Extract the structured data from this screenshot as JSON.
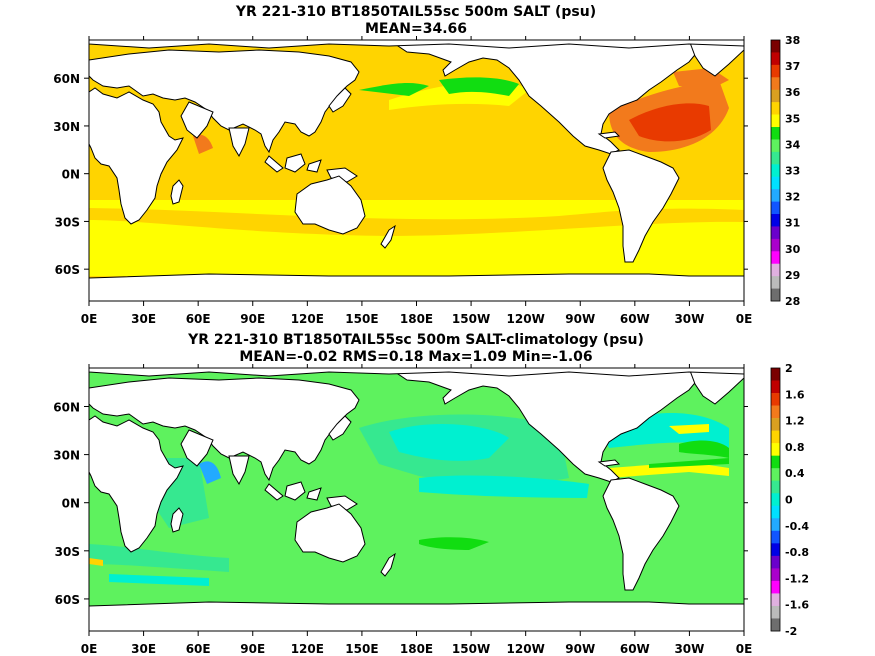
{
  "panels": [
    {
      "title1": "YR 221-310 BT1850TAIL55sc 500m SALT (psu)",
      "title2": "MEAN=34.66",
      "colorbar": {
        "labels": [
          "38",
          "37",
          "36",
          "35",
          "34",
          "33",
          "32",
          "31",
          "30",
          "29",
          "28"
        ],
        "colors": [
          "#7a0000",
          "#c00000",
          "#e83a00",
          "#f27a1c",
          "#d9a020",
          "#ffd400",
          "#ffff00",
          "#11dd11",
          "#5ef25e",
          "#36e890",
          "#00f0d0",
          "#00e0ff",
          "#22aaff",
          "#1155ff",
          "#0000e6",
          "#6a00cc",
          "#aa00cc",
          "#ff00ff",
          "#e0b0e0",
          "#bbbbbb",
          "#6e6e6e"
        ]
      }
    },
    {
      "title1": "YR 221-310 BT1850TAIL55sc 500m SALT-climatology (psu)",
      "title2": "MEAN=-0.02   RMS=0.18   Max=1.09   Min=-1.06",
      "colorbar": {
        "labels": [
          "2",
          "1.6",
          "1.2",
          "0.8",
          "0.4",
          "0",
          "-0.4",
          "-0.8",
          "-1.2",
          "-1.6",
          "-2"
        ],
        "colors": [
          "#7a0000",
          "#c00000",
          "#e83a00",
          "#f27a1c",
          "#d9a020",
          "#ffd400",
          "#ffff00",
          "#11dd11",
          "#5ef25e",
          "#36e890",
          "#00f0d0",
          "#00e0ff",
          "#22aaff",
          "#1155ff",
          "#0000e6",
          "#6a00cc",
          "#aa00cc",
          "#ff00ff",
          "#e0b0e0",
          "#bbbbbb",
          "#6e6e6e"
        ]
      }
    }
  ],
  "lon_labels": [
    "0E",
    "30E",
    "60E",
    "90E",
    "120E",
    "150E",
    "180E",
    "150W",
    "120W",
    "90W",
    "60W",
    "30W",
    "0E"
  ],
  "lat_labels": [
    "60N",
    "30N",
    "0N",
    "30S",
    "60S"
  ],
  "lat_values": [
    60,
    30,
    0,
    -30,
    -60
  ],
  "lat_range": [
    -80,
    84
  ],
  "lon_range": [
    0,
    360
  ],
  "colors": {
    "land": "#ffffff",
    "coast": "#000000",
    "ice": "#ffffff"
  }
}
